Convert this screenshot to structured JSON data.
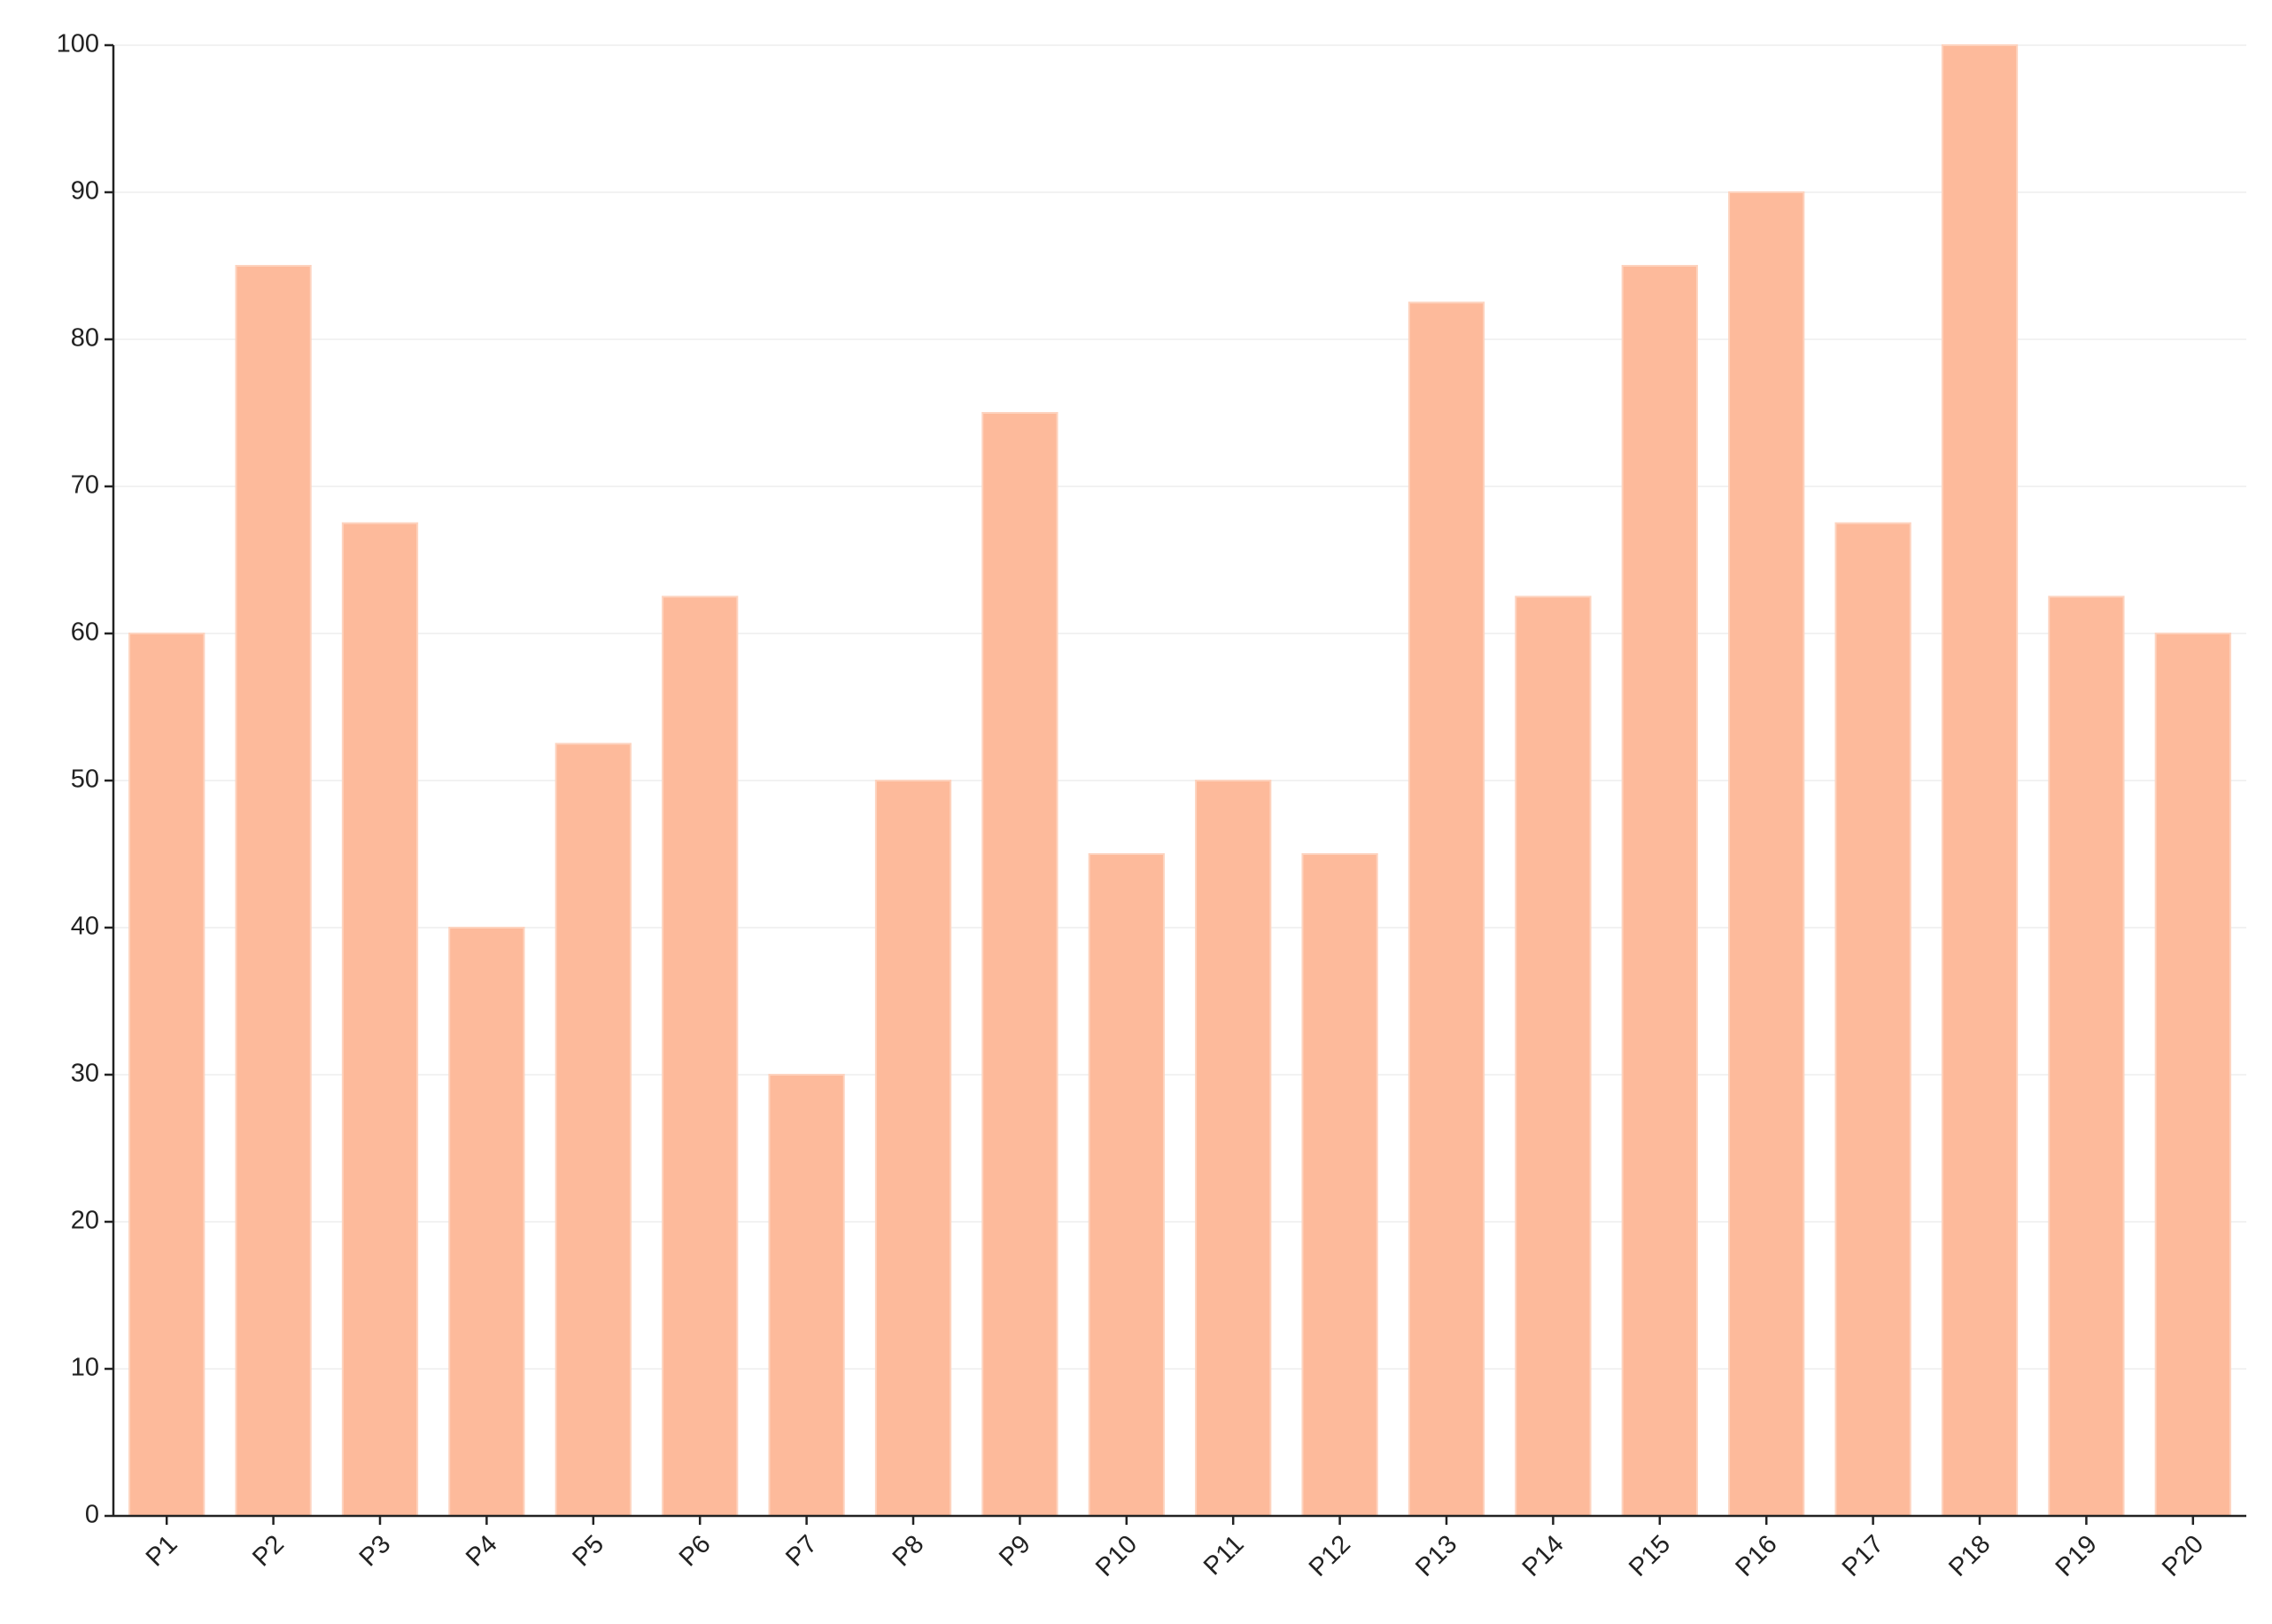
{
  "chart_data": {
    "type": "bar",
    "categories": [
      "P1",
      "P2",
      "P3",
      "P4",
      "P5",
      "P6",
      "P7",
      "P8",
      "P9",
      "P10",
      "P11",
      "P12",
      "P13",
      "P14",
      "P15",
      "P16",
      "P17",
      "P18",
      "P19",
      "P20"
    ],
    "values": [
      60,
      85,
      67.5,
      40,
      52.5,
      62.5,
      30,
      50,
      75,
      45,
      50,
      45,
      82.5,
      62.5,
      85,
      90,
      67.5,
      100,
      62.5,
      60
    ],
    "color": "#fdba9b",
    "ylim": [
      0,
      100
    ],
    "yticks": [
      0,
      10,
      20,
      30,
      40,
      50,
      60,
      70,
      80,
      90,
      100
    ],
    "grid": true
  }
}
